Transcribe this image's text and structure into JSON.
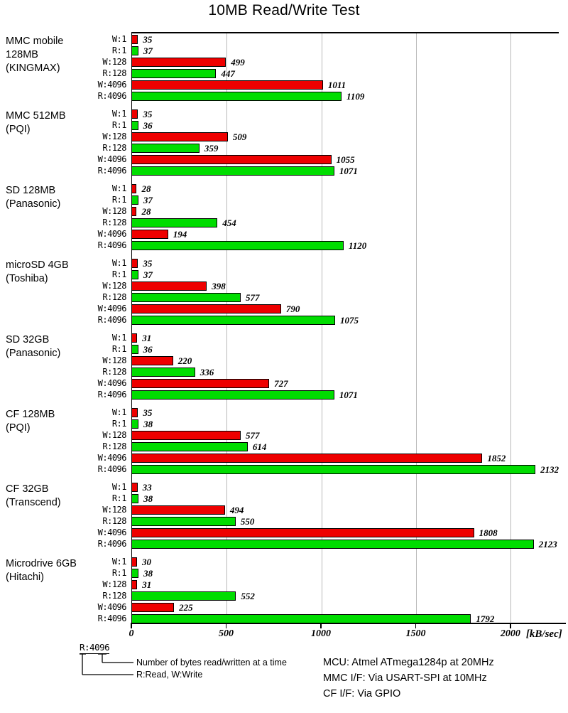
{
  "title": "10MB Read/Write Test",
  "chart_data": {
    "type": "bar",
    "orientation": "horizontal",
    "title": "10MB Read/Write Test",
    "xlabel": "[kB/sec]",
    "x_ticks": [
      0,
      500,
      1000,
      1500,
      2000
    ],
    "x_max": 2255,
    "grid": true,
    "bar_labels": [
      "W:1",
      "R:1",
      "W:128",
      "R:128",
      "W:4096",
      "R:4096"
    ],
    "write_color": "#ee0000",
    "read_color": "#00dd00",
    "groups": [
      {
        "name_lines": [
          "MMC mobile",
          "128MB",
          "(KINGMAX)"
        ],
        "values": [
          35,
          37,
          499,
          447,
          1011,
          1109
        ]
      },
      {
        "name_lines": [
          "MMC 512MB",
          "(PQI)"
        ],
        "values": [
          35,
          36,
          509,
          359,
          1055,
          1071
        ]
      },
      {
        "name_lines": [
          "SD 128MB",
          "(Panasonic)"
        ],
        "values": [
          28,
          37,
          28,
          454,
          194,
          1120
        ]
      },
      {
        "name_lines": [
          "microSD 4GB",
          "(Toshiba)"
        ],
        "values": [
          35,
          37,
          398,
          577,
          790,
          1075
        ]
      },
      {
        "name_lines": [
          "SD 32GB",
          "(Panasonic)"
        ],
        "values": [
          31,
          36,
          220,
          336,
          727,
          1071
        ]
      },
      {
        "name_lines": [
          "CF 128MB",
          "(PQI)"
        ],
        "values": [
          35,
          38,
          577,
          614,
          1852,
          2132
        ]
      },
      {
        "name_lines": [
          "CF 32GB",
          "(Transcend)"
        ],
        "values": [
          33,
          38,
          494,
          550,
          1808,
          2123
        ]
      },
      {
        "name_lines": [
          "Microdrive 6GB",
          "(Hitachi)"
        ],
        "values": [
          30,
          38,
          31,
          552,
          225,
          1792
        ]
      }
    ]
  },
  "legend": {
    "key": "R:4096",
    "note_bytes": "Number of bytes read/written at a time",
    "note_rw": "R:Read, W:Write"
  },
  "info": {
    "mcu": "MCU: Atmel ATmega1284p at 20MHz",
    "mmc": "MMC I/F: Via USART-SPI at 10MHz",
    "cf": "CF I/F: Via GPIO"
  }
}
